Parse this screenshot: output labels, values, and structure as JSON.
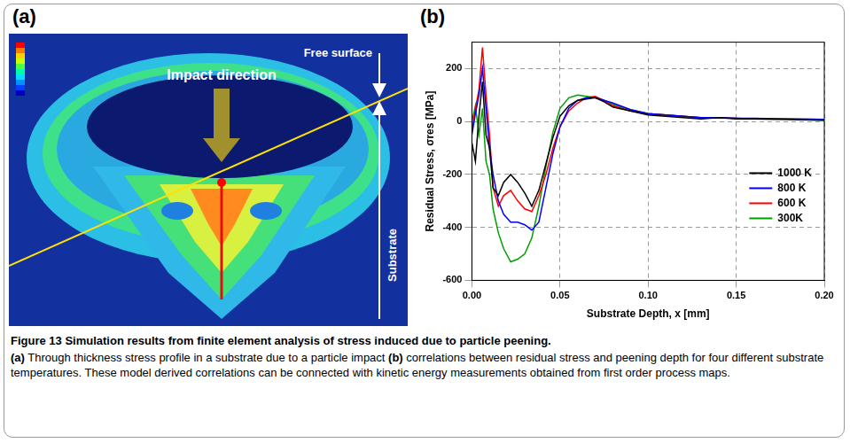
{
  "figure": {
    "panel_a": {
      "label": "(a)",
      "annotations": {
        "impact": "Impact direction",
        "free_surface": "Free surface",
        "substrate": "Substrate"
      }
    },
    "panel_b": {
      "label": "(b)"
    },
    "caption": {
      "title": "Figure 13 Simulation results from finite element analysis of stress induced due to particle peening.",
      "parts": [
        {
          "label": "(a)",
          "text": " Through thickness stress profile in a substrate due to a particle impact "
        },
        {
          "label": "(b)",
          "text": " correlations between residual stress and peening depth for four different substrate temperatures. These model derived correlations can be connected with kinetic energy measurements obtained from first order process maps."
        }
      ]
    }
  },
  "chart_data": {
    "type": "line",
    "x_label": "Substrate Depth, x [mm]",
    "y_label": "Residual Stress, σres [MPa]",
    "x": [
      0,
      0.002,
      0.004,
      0.006,
      0.008,
      0.01,
      0.012,
      0.015,
      0.018,
      0.022,
      0.026,
      0.03,
      0.034,
      0.038,
      0.042,
      0.046,
      0.05,
      0.055,
      0.06,
      0.065,
      0.07,
      0.075,
      0.08,
      0.09,
      0.1,
      0.11,
      0.12,
      0.13,
      0.14,
      0.15,
      0.16,
      0.18,
      0.2
    ],
    "series": [
      {
        "name": "1000 K",
        "color": "#000000",
        "values": [
          -80,
          -150,
          20,
          150,
          -50,
          -100,
          -250,
          -280,
          -230,
          -200,
          -230,
          -270,
          -320,
          -260,
          -160,
          -60,
          20,
          60,
          80,
          85,
          90,
          75,
          55,
          40,
          25,
          20,
          15,
          10,
          15,
          10,
          10,
          8,
          5
        ]
      },
      {
        "name": "800 K",
        "color": "#0000ff",
        "values": [
          -50,
          30,
          100,
          200,
          50,
          -100,
          -200,
          -300,
          -350,
          -380,
          -380,
          -390,
          -410,
          -380,
          -250,
          -120,
          -20,
          50,
          80,
          90,
          90,
          80,
          70,
          45,
          30,
          25,
          20,
          15,
          15,
          12,
          12,
          10,
          8
        ]
      },
      {
        "name": "600 K",
        "color": "#ff0000",
        "values": [
          -30,
          50,
          120,
          280,
          100,
          -50,
          -250,
          -320,
          -280,
          -260,
          -300,
          -330,
          -340,
          -280,
          -200,
          -100,
          -20,
          40,
          70,
          90,
          95,
          80,
          60,
          40,
          30,
          25,
          20,
          15,
          15,
          12,
          10,
          10,
          8
        ]
      },
      {
        "name": "300K",
        "color": "#00a000",
        "values": [
          0,
          60,
          -50,
          50,
          -150,
          -200,
          -330,
          -420,
          -480,
          -530,
          -520,
          -500,
          -440,
          -320,
          -170,
          -40,
          50,
          90,
          100,
          95,
          90,
          80,
          65,
          45,
          30,
          25,
          20,
          15,
          15,
          12,
          10,
          8,
          5
        ]
      }
    ],
    "xlim": [
      0,
      0.2
    ],
    "xticks": [
      {
        "value": 0,
        "label": "0.00"
      },
      {
        "value": 0.05,
        "label": "0.05"
      },
      {
        "value": 0.1,
        "label": "0.10"
      },
      {
        "value": 0.15,
        "label": "0.15"
      },
      {
        "value": 0.2,
        "label": "0.20"
      }
    ],
    "ylim": [
      -600,
      300
    ],
    "yticks": [
      -600,
      -400,
      -200,
      0,
      200
    ],
    "grid": true,
    "legend": "right"
  }
}
